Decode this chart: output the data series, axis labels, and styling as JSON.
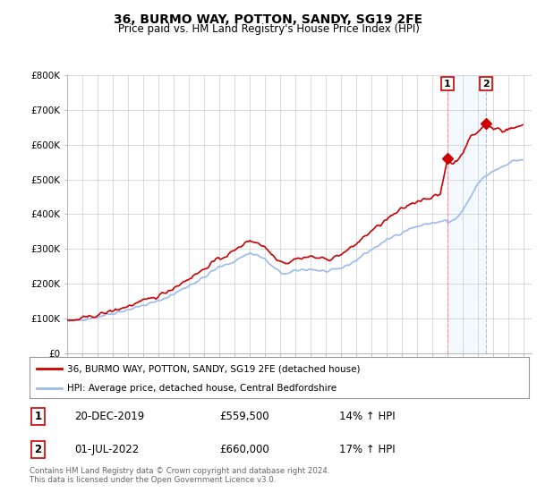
{
  "title": "36, BURMO WAY, POTTON, SANDY, SG19 2FE",
  "subtitle": "Price paid vs. HM Land Registry's House Price Index (HPI)",
  "ylim": [
    0,
    800000
  ],
  "yticks": [
    0,
    100000,
    200000,
    300000,
    400000,
    500000,
    600000,
    700000,
    800000
  ],
  "ytick_labels": [
    "£0",
    "£100K",
    "£200K",
    "£300K",
    "£400K",
    "£500K",
    "£600K",
    "£700K",
    "£800K"
  ],
  "sale1_date": "20-DEC-2019",
  "sale1_price": 559500,
  "sale1_hpi_pct": "14%",
  "sale2_date": "01-JUL-2022",
  "sale2_price": 660000,
  "sale2_hpi_pct": "17%",
  "legend_line1": "36, BURMO WAY, POTTON, SANDY, SG19 2FE (detached house)",
  "legend_line2": "HPI: Average price, detached house, Central Bedfordshire",
  "footer": "Contains HM Land Registry data © Crown copyright and database right 2024.\nThis data is licensed under the Open Government Licence v3.0.",
  "price_color": "#cc0000",
  "hpi_color": "#99bbee",
  "background_color": "#ffffff",
  "grid_color": "#cccccc",
  "vline1_color": "#ff8888",
  "vline2_color": "#aabbdd",
  "sale1_x": 2019.97,
  "sale2_x": 2022.5
}
